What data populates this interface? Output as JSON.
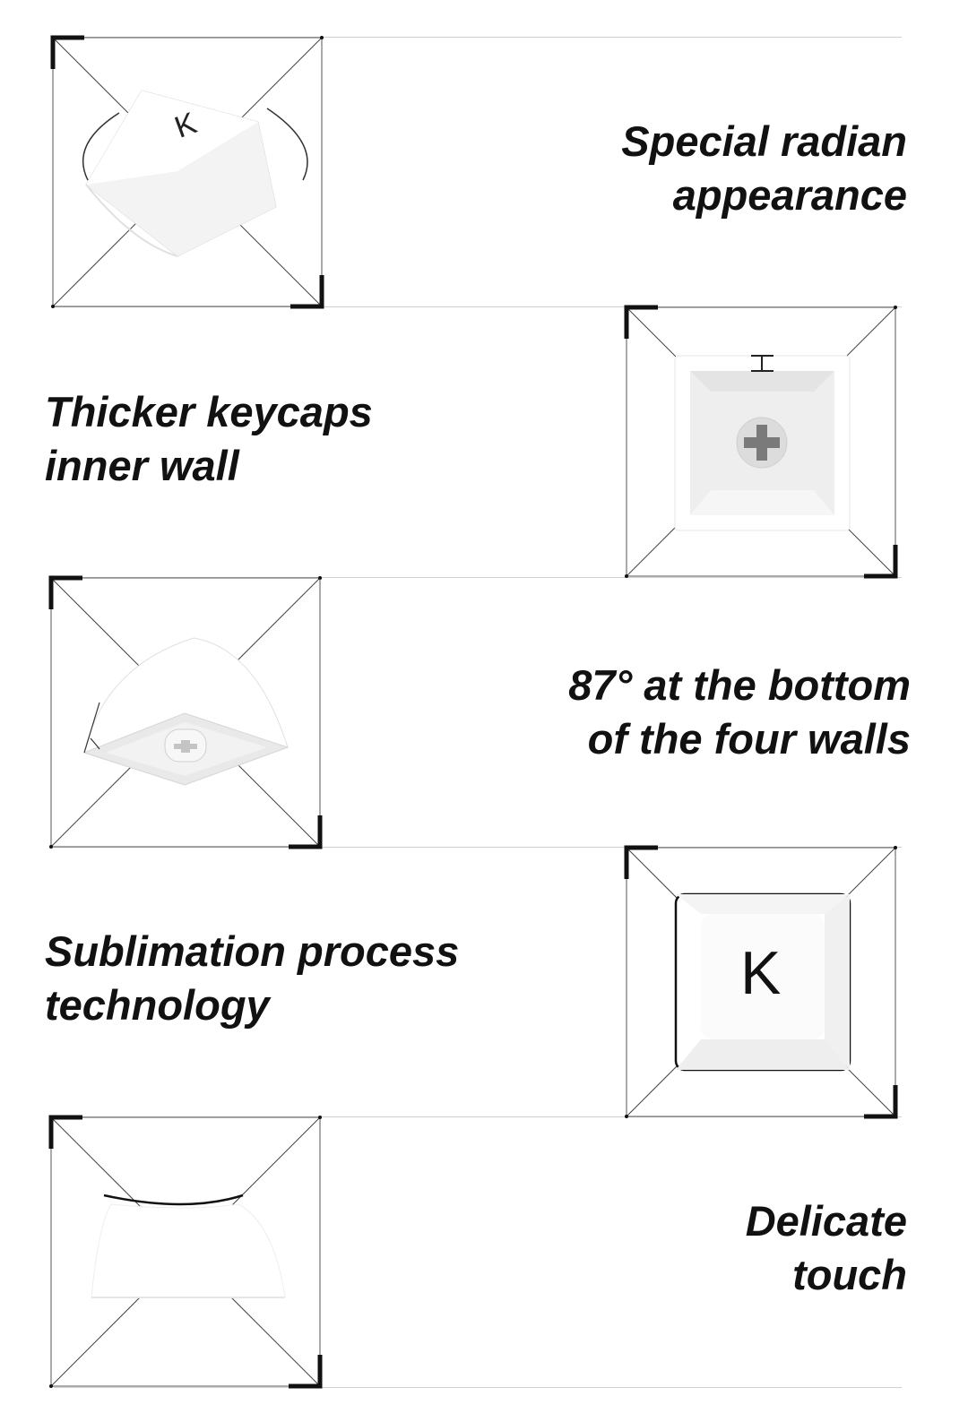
{
  "features": [
    {
      "id": "radian",
      "lines": [
        "Special radian",
        "appearance"
      ],
      "icon": "curved-keycap-icon"
    },
    {
      "id": "inner-wall",
      "lines": [
        "Thicker keycaps",
        "inner wall"
      ],
      "icon": "keycap-bottom-view-icon"
    },
    {
      "id": "angle",
      "lines": [
        "87° at the bottom",
        "of the four walls"
      ],
      "icon": "keycap-angle-icon"
    },
    {
      "id": "sublimation",
      "lines": [
        "Sublimation process",
        "technology"
      ],
      "icon": "keycap-top-view-icon"
    },
    {
      "id": "touch",
      "lines": [
        "Delicate",
        "touch"
      ],
      "icon": "keycap-side-profile-icon"
    }
  ],
  "keycap_legend": "K"
}
